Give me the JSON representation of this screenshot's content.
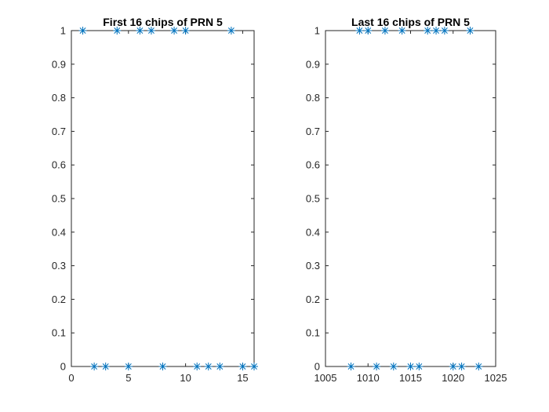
{
  "chart_data": [
    {
      "type": "scatter",
      "title": "First 16 chips of PRN 5",
      "xlabel": "",
      "ylabel": "",
      "marker": "asterisk",
      "color": "#0072bd",
      "xlim": [
        0,
        16
      ],
      "ylim": [
        0,
        1
      ],
      "xticks": [
        0,
        5,
        10,
        15
      ],
      "xtick_labels": [
        "0",
        "5",
        "10",
        "15"
      ],
      "yticks": [
        0,
        0.1,
        0.2,
        0.3,
        0.4,
        0.5,
        0.6,
        0.7,
        0.8,
        0.9,
        1
      ],
      "ytick_labels": [
        "0",
        "0.1",
        "0.2",
        "0.3",
        "0.4",
        "0.5",
        "0.6",
        "0.7",
        "0.8",
        "0.9",
        "1"
      ],
      "x": [
        1,
        2,
        3,
        4,
        5,
        6,
        7,
        8,
        9,
        10,
        11,
        12,
        13,
        14,
        15,
        16
      ],
      "y": [
        1,
        0,
        0,
        1,
        0,
        1,
        1,
        0,
        1,
        1,
        0,
        0,
        0,
        1,
        0,
        0
      ],
      "grid": false
    },
    {
      "type": "scatter",
      "title": "Last 16 chips of PRN 5",
      "xlabel": "",
      "ylabel": "",
      "marker": "asterisk",
      "color": "#0072bd",
      "xlim": [
        1005,
        1025
      ],
      "ylim": [
        0,
        1
      ],
      "xticks": [
        1005,
        1010,
        1015,
        1020,
        1025
      ],
      "xtick_labels": [
        "1005",
        "1010",
        "1015",
        "1020",
        "1025"
      ],
      "yticks": [
        0,
        0.1,
        0.2,
        0.3,
        0.4,
        0.5,
        0.6,
        0.7,
        0.8,
        0.9,
        1
      ],
      "ytick_labels": [
        "0",
        "0.1",
        "0.2",
        "0.3",
        "0.4",
        "0.5",
        "0.6",
        "0.7",
        "0.8",
        "0.9",
        "1"
      ],
      "x": [
        1008,
        1009,
        1010,
        1011,
        1012,
        1013,
        1014,
        1015,
        1016,
        1017,
        1018,
        1019,
        1020,
        1021,
        1022,
        1023
      ],
      "y": [
        0,
        1,
        1,
        0,
        1,
        0,
        1,
        0,
        0,
        1,
        1,
        1,
        0,
        0,
        1,
        0
      ],
      "grid": false
    }
  ]
}
